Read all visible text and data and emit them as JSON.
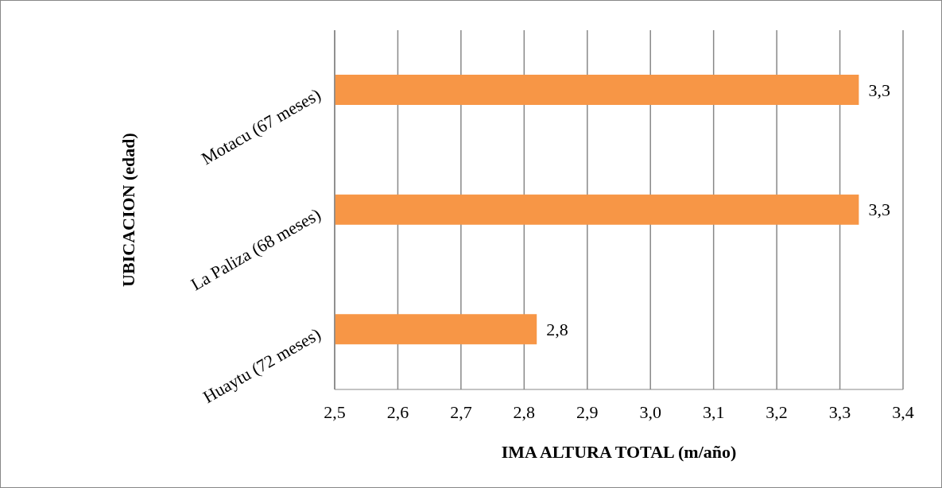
{
  "chart_data": {
    "type": "bar",
    "orientation": "horizontal",
    "xlabel": "IMA ALTURA TOTAL (m/año)",
    "ylabel": "UBICACION (edad)",
    "categories": [
      "Motacu (67 meses)",
      "La Paliza (68 meses)",
      "Huaytu (72 meses)"
    ],
    "values": [
      3.33,
      3.33,
      2.82
    ],
    "value_labels": [
      "3,3",
      "3,3",
      "2,8"
    ],
    "color": "#f79646",
    "xlim": [
      2.5,
      3.4
    ],
    "xticks": [
      {
        "value": 2.5,
        "label": "2,5"
      },
      {
        "value": 2.6,
        "label": "2,6"
      },
      {
        "value": 2.7,
        "label": "2,7"
      },
      {
        "value": 2.8,
        "label": "2,8"
      },
      {
        "value": 2.9,
        "label": "2,9"
      },
      {
        "value": 3.0,
        "label": "3,0"
      },
      {
        "value": 3.1,
        "label": "3,1"
      },
      {
        "value": 3.2,
        "label": "3,2"
      },
      {
        "value": 3.3,
        "label": "3,3"
      },
      {
        "value": 3.4,
        "label": "3,4"
      }
    ],
    "grid": "x"
  }
}
